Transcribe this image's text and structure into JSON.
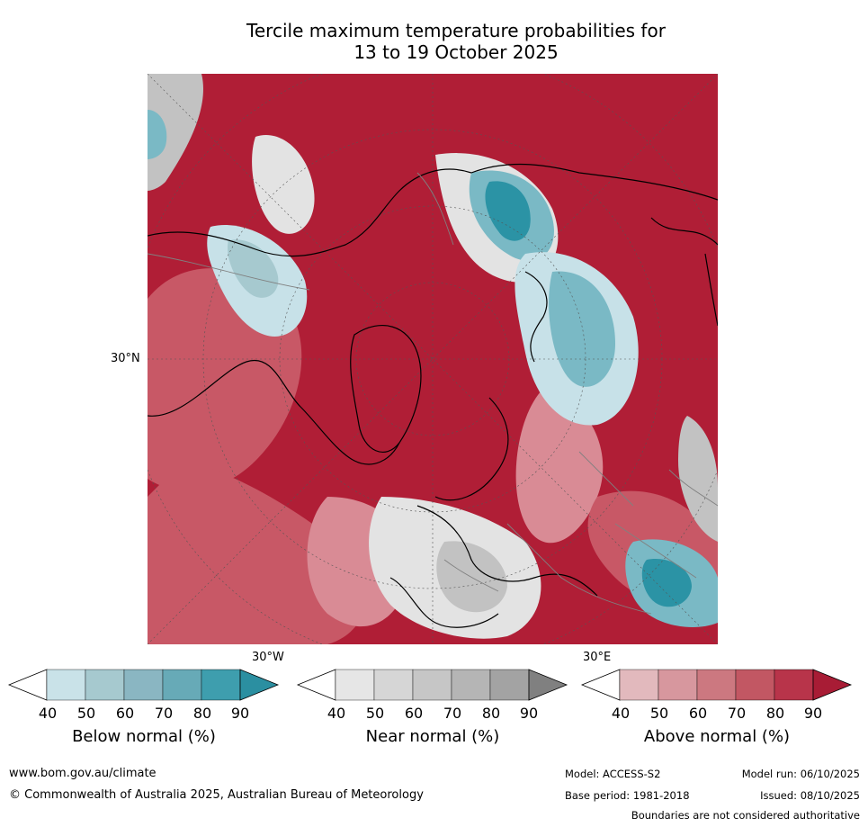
{
  "title_line1": "Tercile maximum temperature probabilities for",
  "title_line2": "13 to 19 October 2025",
  "map": {
    "lat_label": "30°N",
    "lon_label_left": "30°W",
    "lon_label_right": "30°E",
    "colors": {
      "above_strong": "#b01e36",
      "above_mid": "#c85866",
      "above_light": "#d98b95",
      "below_strong": "#2b93a5",
      "below_mid": "#7ab9c5",
      "below_light": "#c7e1e8",
      "near_light": "#e3e3e3",
      "near_mid": "#c2c2c2",
      "coastline": "#000000",
      "borders": "#808080"
    }
  },
  "colorbars": [
    {
      "label": "Below normal (%)",
      "ticks": [
        "40",
        "50",
        "60",
        "70",
        "80",
        "90"
      ],
      "colors": [
        "#ffffff",
        "#c9e2e8",
        "#a6c9cf",
        "#8ab6c2",
        "#67aab7",
        "#3e9eae",
        "#2b8fa1"
      ]
    },
    {
      "label": "Near normal (%)",
      "ticks": [
        "40",
        "50",
        "60",
        "70",
        "80",
        "90"
      ],
      "colors": [
        "#ffffff",
        "#e6e6e6",
        "#d6d6d6",
        "#c6c6c6",
        "#b5b5b5",
        "#a3a3a3",
        "#808080"
      ]
    },
    {
      "label": "Above normal (%)",
      "ticks": [
        "40",
        "50",
        "60",
        "70",
        "80",
        "90"
      ],
      "colors": [
        "#ffffff",
        "#e2b9bd",
        "#d7979e",
        "#cc7880",
        "#c25763",
        "#b8344a",
        "#a81c35"
      ]
    }
  ],
  "footer": {
    "url": "www.bom.gov.au/climate",
    "copyright": "© Commonwealth of Australia 2025, Australian Bureau of Meteorology",
    "model": "Model: ACCESS-S2",
    "base_period": "Base period: 1981-2018",
    "model_run": "Model run: 06/10/2025",
    "issued": "Issued: 08/10/2025",
    "disclaimer": "Boundaries are not considered authoritative"
  }
}
